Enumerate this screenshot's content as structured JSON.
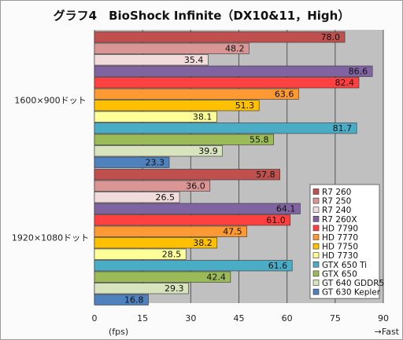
{
  "chart_data": {
    "type": "bar",
    "orientation": "horizontal",
    "title": "グラフ4　BioShock Infinite（DX10&11，High）",
    "xlabel": "(fps)",
    "x_end_label": "→Fast",
    "xlim": [
      0,
      90
    ],
    "xticks": [
      0,
      15,
      30,
      45,
      60,
      75,
      90
    ],
    "grid": true,
    "legend_position": "bottom-right",
    "categories": [
      "1600×900ドット",
      "1920×1080ドット"
    ],
    "series": [
      {
        "name": "R7 260",
        "color": "#c0504d",
        "values": [
          78.0,
          57.8
        ]
      },
      {
        "name": "R7 250",
        "color": "#da9694",
        "values": [
          48.2,
          36.0
        ]
      },
      {
        "name": "R7 240",
        "color": "#f2dcdb",
        "values": [
          35.4,
          26.5
        ]
      },
      {
        "name": "R7 260X",
        "color": "#8064a2",
        "values": [
          86.6,
          64.1
        ]
      },
      {
        "name": "HD 7790",
        "color": "#ff4040",
        "values": [
          82.4,
          61.0
        ]
      },
      {
        "name": "HD 7770",
        "color": "#ff9933",
        "values": [
          63.6,
          47.5
        ]
      },
      {
        "name": "HD 7750",
        "color": "#ffc000",
        "values": [
          51.3,
          38.2
        ]
      },
      {
        "name": "HD 7730",
        "color": "#ffff99",
        "values": [
          38.1,
          28.5
        ]
      },
      {
        "name": "GTX 650 Ti",
        "color": "#4bacc6",
        "values": [
          81.7,
          61.6
        ]
      },
      {
        "name": "GTX 650",
        "color": "#9bbb59",
        "values": [
          55.8,
          42.4
        ]
      },
      {
        "name": "GT 640 GDDR5",
        "color": "#d7e4bd",
        "values": [
          39.9,
          29.3
        ]
      },
      {
        "name": "GT 630 Kepler",
        "color": "#4f81bd",
        "values": [
          23.3,
          16.8
        ]
      }
    ]
  }
}
